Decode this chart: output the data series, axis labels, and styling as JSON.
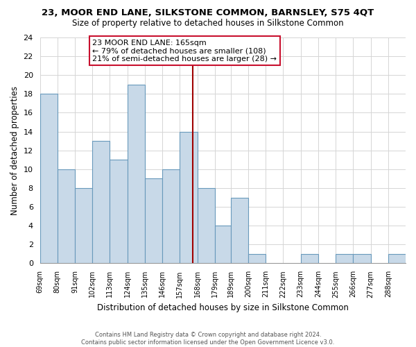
{
  "title": "23, MOOR END LANE, SILKSTONE COMMON, BARNSLEY, S75 4QT",
  "subtitle": "Size of property relative to detached houses in Silkstone Common",
  "xlabel": "Distribution of detached houses by size in Silkstone Common",
  "ylabel": "Number of detached properties",
  "bin_labels": [
    "69sqm",
    "80sqm",
    "91sqm",
    "102sqm",
    "113sqm",
    "124sqm",
    "135sqm",
    "146sqm",
    "157sqm",
    "168sqm",
    "179sqm",
    "189sqm",
    "200sqm",
    "211sqm",
    "222sqm",
    "233sqm",
    "244sqm",
    "255sqm",
    "266sqm",
    "277sqm",
    "288sqm"
  ],
  "bin_edges": [
    69,
    80,
    91,
    102,
    113,
    124,
    135,
    146,
    157,
    168,
    179,
    189,
    200,
    211,
    222,
    233,
    244,
    255,
    266,
    277,
    288,
    299
  ],
  "counts": [
    18,
    10,
    8,
    13,
    11,
    19,
    9,
    10,
    14,
    8,
    4,
    7,
    1,
    0,
    0,
    1,
    0,
    1,
    1,
    0,
    1
  ],
  "bar_color": "#c8d9e8",
  "bar_edge_color": "#6899bb",
  "vline_x": 165,
  "vline_color": "#a00000",
  "annotation_title": "23 MOOR END LANE: 165sqm",
  "annotation_line1": "← 79% of detached houses are smaller (108)",
  "annotation_line2": "21% of semi-detached houses are larger (28) →",
  "annotation_box_edge": "#c8102e",
  "ylim": [
    0,
    24
  ],
  "yticks": [
    0,
    2,
    4,
    6,
    8,
    10,
    12,
    14,
    16,
    18,
    20,
    22,
    24
  ],
  "footer1": "Contains HM Land Registry data © Crown copyright and database right 2024.",
  "footer2": "Contains public sector information licensed under the Open Government Licence v3.0.",
  "bg_color": "white",
  "grid_color": "#d5d5d5"
}
